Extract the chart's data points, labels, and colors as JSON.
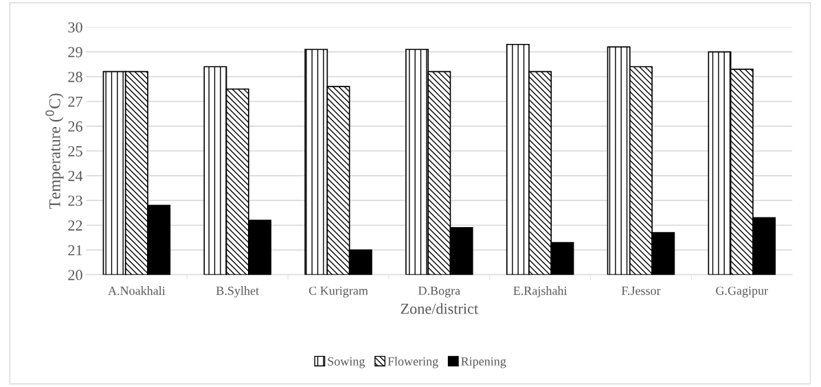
{
  "chart_data": {
    "type": "bar",
    "xlabel": "Zone/district",
    "ylabel": "Temperature ($^{0}$C)",
    "categories": [
      "A.Noakhali",
      "B.Sylhet",
      "C Kurigram",
      "D.Bogra",
      "E.Rajshahi",
      "F.Jessor",
      "G.Gagipur"
    ],
    "series": [
      {
        "name": "Sowing",
        "color": "#000000",
        "values": [
          28.2,
          28.4,
          29.1,
          29.1,
          29.3,
          29.2,
          29.0
        ]
      },
      {
        "name": "Flowering",
        "color": "#000000",
        "values": [
          28.2,
          27.5,
          27.6,
          28.2,
          28.2,
          28.4,
          28.3
        ]
      },
      {
        "name": "Ripening",
        "color": "#000000",
        "values": [
          22.8,
          22.2,
          21.0,
          21.9,
          21.3,
          21.7,
          22.3
        ]
      }
    ],
    "ylim": [
      20,
      30
    ],
    "yticks": [
      20,
      21,
      22,
      23,
      24,
      25,
      26,
      27,
      28,
      29,
      30
    ],
    "grid": "y",
    "legend": "bottom"
  }
}
